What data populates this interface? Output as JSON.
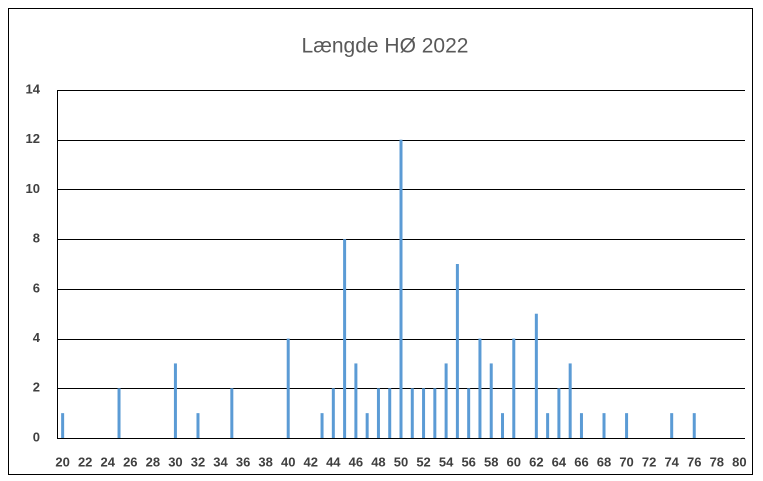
{
  "chart_data": {
    "type": "bar",
    "title": "Længde HØ 2022",
    "categories": [
      "20",
      null,
      "22",
      null,
      "24",
      null,
      "26",
      null,
      "28",
      null,
      "30",
      null,
      "32",
      null,
      "34",
      null,
      "36",
      null,
      "38",
      null,
      "40",
      null,
      "42",
      null,
      "44",
      null,
      "46",
      null,
      "48",
      null,
      "50",
      null,
      "52",
      null,
      "54",
      null,
      "56",
      null,
      "58",
      null,
      "60",
      null,
      "62",
      null,
      "64",
      null,
      "66",
      null,
      "68",
      null,
      "70",
      null,
      "72",
      null,
      "74",
      null,
      "76",
      null,
      "78",
      null,
      "80"
    ],
    "values": [
      1,
      0,
      0,
      0,
      0,
      2,
      0,
      0,
      0,
      0,
      3,
      0,
      1,
      0,
      0,
      2,
      0,
      0,
      0,
      0,
      4,
      0,
      0,
      1,
      2,
      8,
      3,
      1,
      2,
      2,
      12,
      2,
      2,
      2,
      3,
      7,
      2,
      4,
      3,
      1,
      4,
      0,
      5,
      1,
      2,
      3,
      1,
      0,
      1,
      0,
      1,
      0,
      0,
      0,
      1,
      0,
      1,
      0,
      0,
      0,
      0
    ],
    "color": "#5b9bd5",
    "ylim": [
      0,
      14
    ],
    "yticks": [
      0,
      2,
      4,
      6,
      8,
      10,
      12,
      14
    ],
    "grid": true
  }
}
